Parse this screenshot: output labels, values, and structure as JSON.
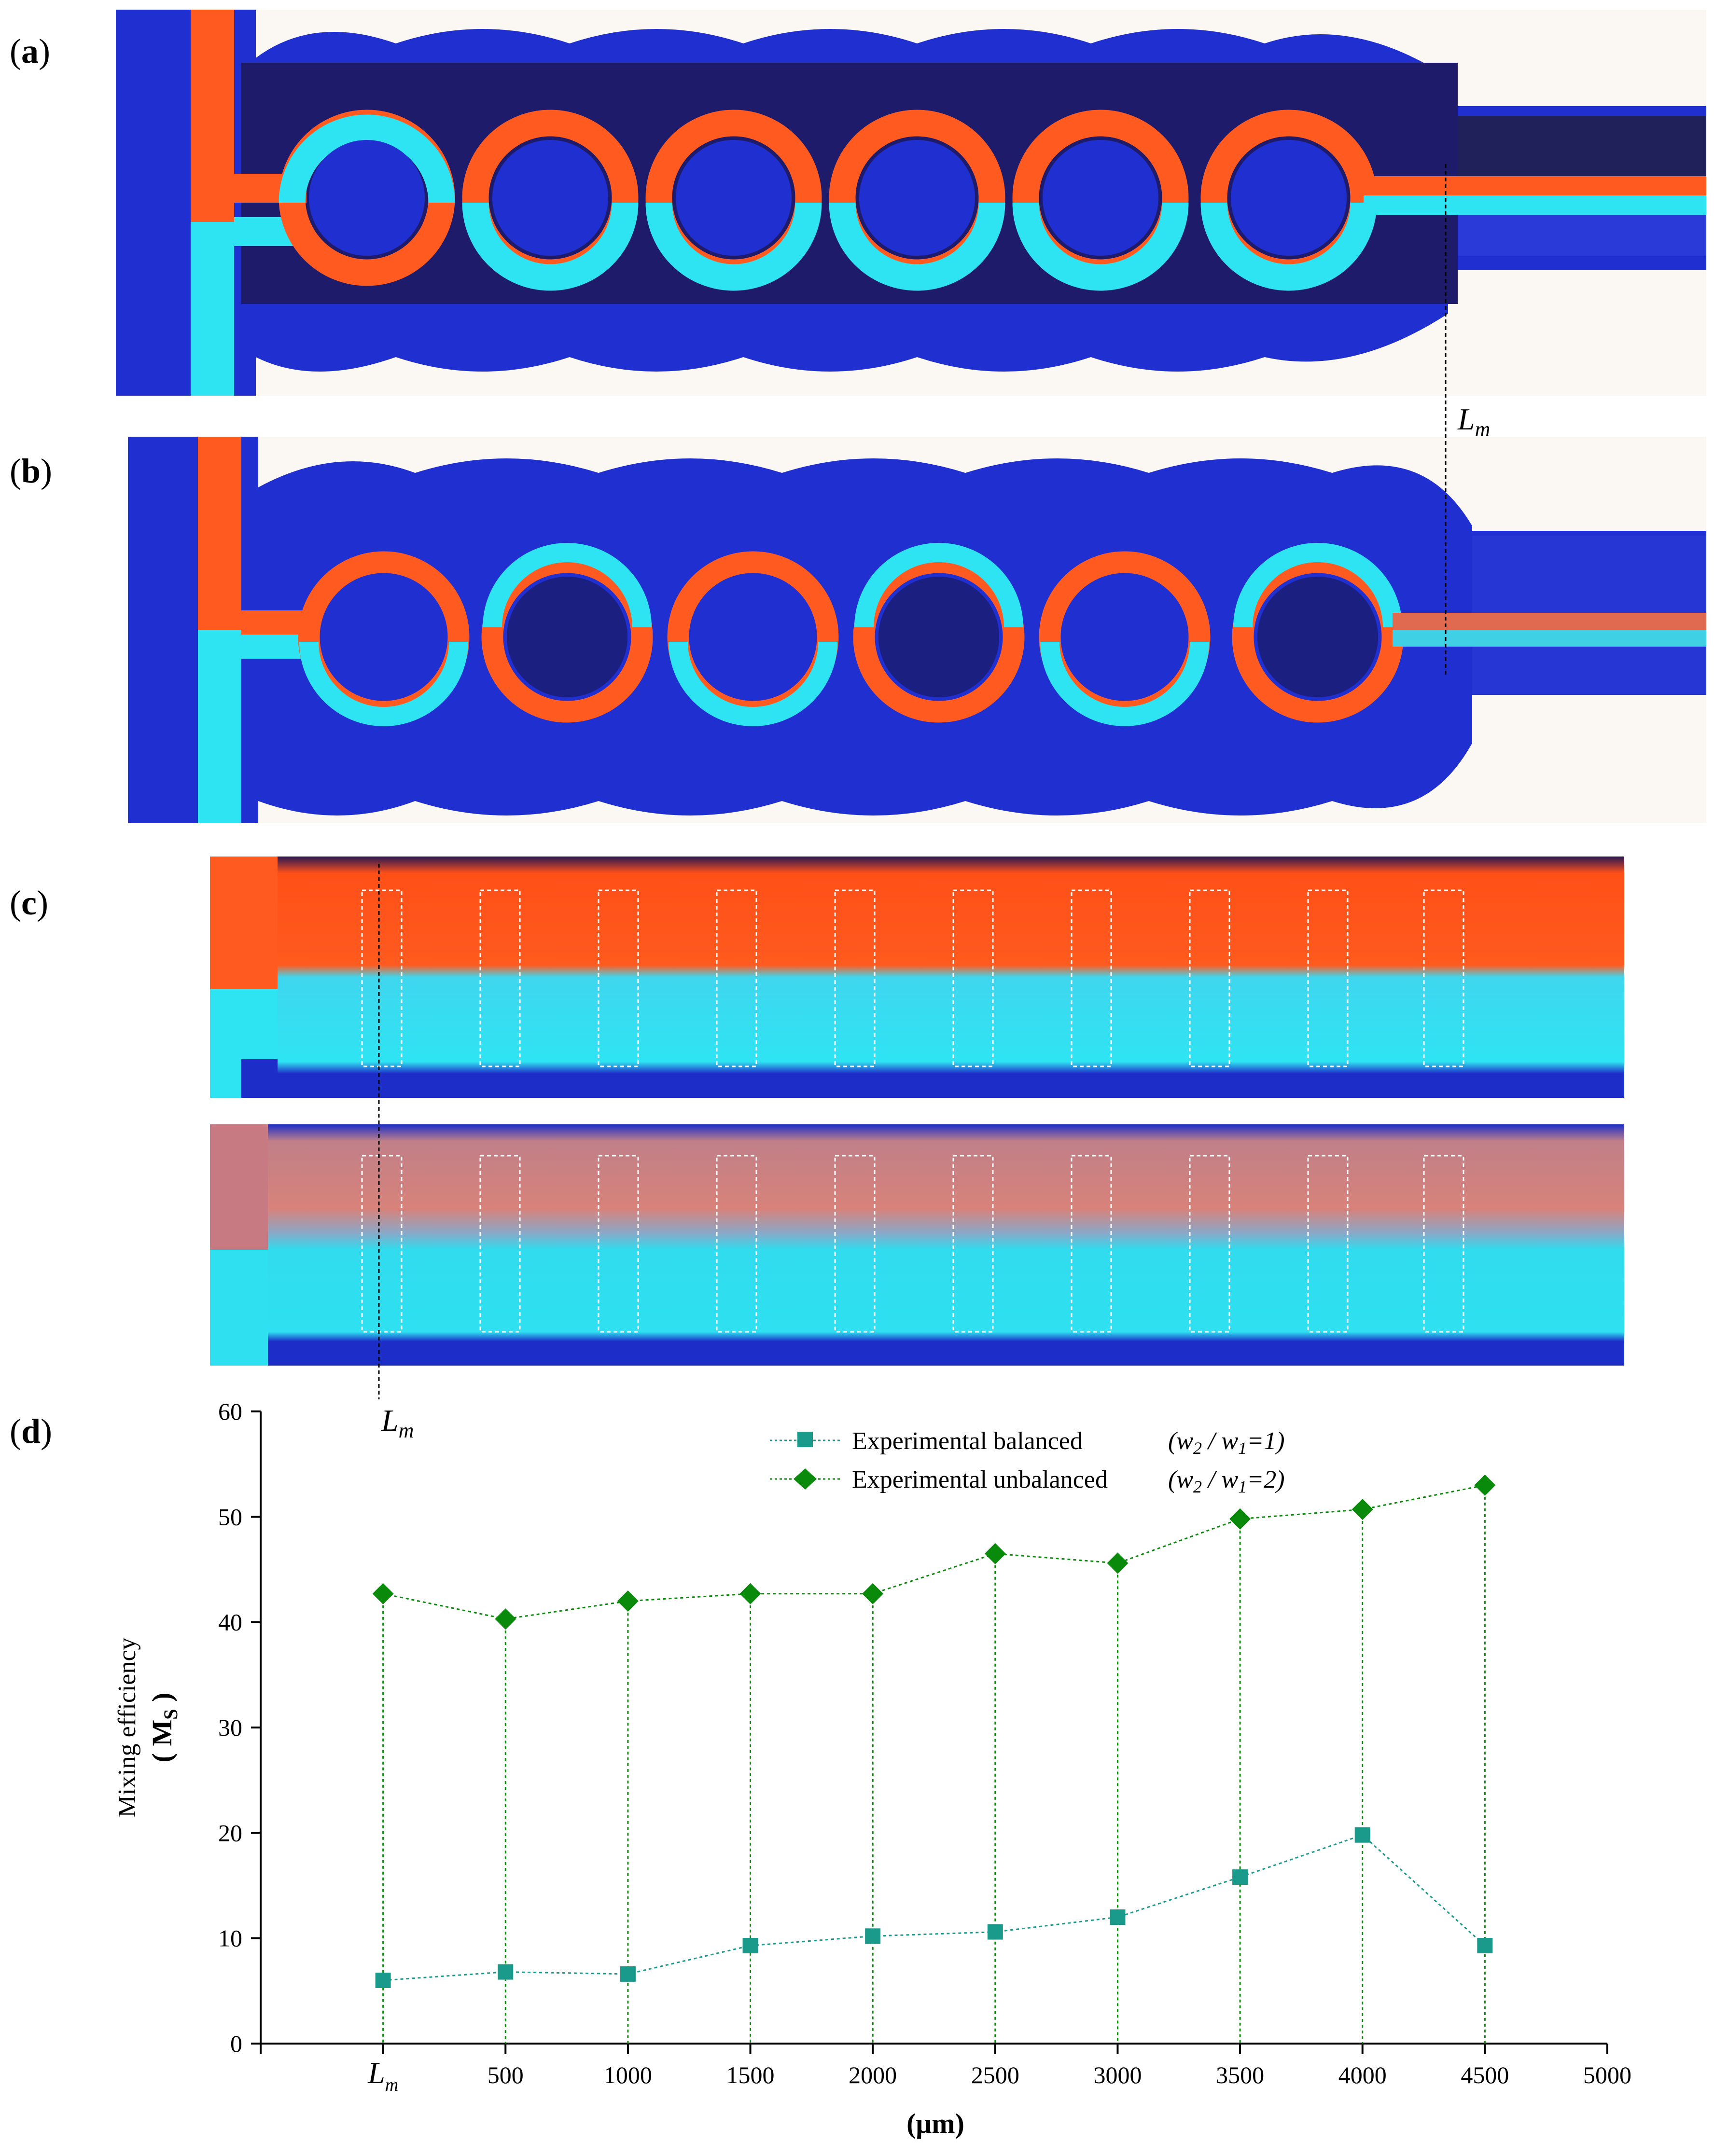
{
  "panels": {
    "a": "a",
    "b": "b",
    "c": "c",
    "d": "d"
  },
  "annotations": {
    "lm_main": "L",
    "lm_sub": "m"
  },
  "image_colors": {
    "chip_blue": "#1f2fd0",
    "dark_channel": "#1a1a5e",
    "orange_fluid": "#ff5a1f",
    "cyan_fluid": "#28e6f0",
    "mixed_pink": "#d8807a"
  },
  "chart_data": {
    "type": "line",
    "x_ticks": [
      "L",
      "500",
      "1000",
      "1500",
      "2000",
      "2500",
      "3000",
      "3500",
      "4000",
      "4500",
      "5000"
    ],
    "x_tick0_sub": "m",
    "x_positions": [
      0,
      500,
      1000,
      1500,
      2000,
      2500,
      3000,
      3500,
      4000,
      4500
    ],
    "xlim": [
      -500,
      5000
    ],
    "ylim": [
      0,
      60
    ],
    "y_ticks": [
      "0",
      "10",
      "20",
      "30",
      "40",
      "50",
      "60"
    ],
    "xlabel": "(μm)",
    "ylabel": "Mixing efficiency",
    "ylabel2_main": "( M",
    "ylabel2_sub": "S",
    "ylabel2_close": " )",
    "series": [
      {
        "name": "Experimental balanced",
        "ratio_w2": "w",
        "ratio_label": "(w2 / w1=1)",
        "ratio_parts": [
          "(",
          "w",
          "2",
          " / ",
          "w",
          "1",
          "=1)"
        ],
        "marker": "square",
        "color": "#1a9a8a",
        "values": [
          6.0,
          6.8,
          6.6,
          9.3,
          10.2,
          10.6,
          12.0,
          15.8,
          19.8,
          9.3
        ]
      },
      {
        "name": "Experimental unbalanced",
        "ratio_label": "(w2 / w1=2)",
        "ratio_parts": [
          "(",
          "w",
          "2",
          " / ",
          "w",
          "1",
          "=2)"
        ],
        "marker": "diamond",
        "color": "#0a8a0a",
        "values": [
          42.7,
          40.3,
          42.0,
          42.7,
          42.7,
          46.5,
          45.6,
          49.8,
          50.7,
          53.0
        ]
      }
    ]
  }
}
